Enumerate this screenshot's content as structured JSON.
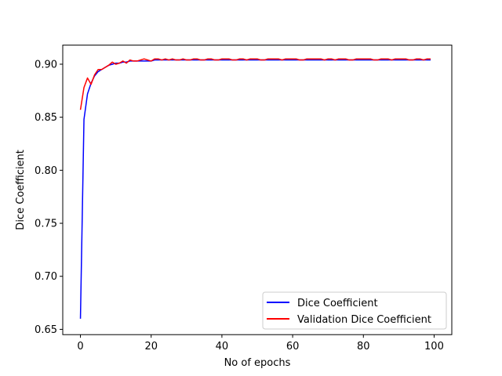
{
  "chart_data": {
    "type": "line",
    "xlabel": "No of epochs",
    "ylabel": "Dice Coefficient",
    "xlim": [
      -5,
      105
    ],
    "ylim": [
      0.645,
      0.918
    ],
    "xticks": [
      0,
      20,
      40,
      60,
      80,
      100
    ],
    "xtick_labels": [
      "0",
      "20",
      "40",
      "60",
      "80",
      "100"
    ],
    "yticks": [
      0.65,
      0.7,
      0.75,
      0.8,
      0.85,
      0.9
    ],
    "ytick_labels": [
      "0.65",
      "0.70",
      "0.75",
      "0.80",
      "0.85",
      "0.90"
    ],
    "grid": false,
    "legend_position": "lower-right",
    "series": [
      {
        "name": "Dice Coefficient",
        "color": "#0000ff",
        "x": [
          0,
          1,
          2,
          3,
          4,
          5,
          6,
          7,
          8,
          9,
          10,
          11,
          12,
          13,
          14,
          15,
          16,
          17,
          18,
          19,
          20,
          21,
          22,
          23,
          24,
          25,
          26,
          27,
          28,
          29,
          30,
          31,
          32,
          33,
          34,
          35,
          36,
          37,
          38,
          39,
          40,
          41,
          42,
          43,
          44,
          45,
          46,
          47,
          48,
          49,
          50,
          51,
          52,
          53,
          54,
          55,
          56,
          57,
          58,
          59,
          60,
          61,
          62,
          63,
          64,
          65,
          66,
          67,
          68,
          69,
          70,
          71,
          72,
          73,
          74,
          75,
          76,
          77,
          78,
          79,
          80,
          81,
          82,
          83,
          84,
          85,
          86,
          87,
          88,
          89,
          90,
          91,
          92,
          93,
          94,
          95,
          96,
          97,
          98,
          99
        ],
        "values": [
          0.66,
          0.848,
          0.872,
          0.882,
          0.889,
          0.893,
          0.895,
          0.897,
          0.899,
          0.9,
          0.901,
          0.901,
          0.902,
          0.902,
          0.903,
          0.903,
          0.903,
          0.903,
          0.903,
          0.903,
          0.903,
          0.904,
          0.904,
          0.904,
          0.904,
          0.904,
          0.904,
          0.904,
          0.904,
          0.904,
          0.904,
          0.904,
          0.904,
          0.904,
          0.904,
          0.904,
          0.904,
          0.904,
          0.904,
          0.904,
          0.904,
          0.904,
          0.904,
          0.904,
          0.904,
          0.904,
          0.904,
          0.904,
          0.904,
          0.904,
          0.904,
          0.904,
          0.904,
          0.904,
          0.904,
          0.904,
          0.904,
          0.904,
          0.904,
          0.904,
          0.904,
          0.904,
          0.904,
          0.904,
          0.904,
          0.904,
          0.904,
          0.904,
          0.904,
          0.904,
          0.904,
          0.904,
          0.904,
          0.904,
          0.904,
          0.904,
          0.904,
          0.904,
          0.904,
          0.904,
          0.904,
          0.904,
          0.904,
          0.904,
          0.904,
          0.904,
          0.904,
          0.904,
          0.904,
          0.904,
          0.904,
          0.904,
          0.904,
          0.904,
          0.904,
          0.904,
          0.904,
          0.904,
          0.904,
          0.904
        ]
      },
      {
        "name": "Validation Dice Coefficient",
        "color": "#ff0000",
        "x": [
          0,
          1,
          2,
          3,
          4,
          5,
          6,
          7,
          8,
          9,
          10,
          11,
          12,
          13,
          14,
          15,
          16,
          17,
          18,
          19,
          20,
          21,
          22,
          23,
          24,
          25,
          26,
          27,
          28,
          29,
          30,
          31,
          32,
          33,
          34,
          35,
          36,
          37,
          38,
          39,
          40,
          41,
          42,
          43,
          44,
          45,
          46,
          47,
          48,
          49,
          50,
          51,
          52,
          53,
          54,
          55,
          56,
          57,
          58,
          59,
          60,
          61,
          62,
          63,
          64,
          65,
          66,
          67,
          68,
          69,
          70,
          71,
          72,
          73,
          74,
          75,
          76,
          77,
          78,
          79,
          80,
          81,
          82,
          83,
          84,
          85,
          86,
          87,
          88,
          89,
          90,
          91,
          92,
          93,
          94,
          95,
          96,
          97,
          98,
          99
        ],
        "values": [
          0.857,
          0.878,
          0.887,
          0.881,
          0.89,
          0.895,
          0.895,
          0.897,
          0.899,
          0.902,
          0.9,
          0.901,
          0.903,
          0.901,
          0.904,
          0.903,
          0.903,
          0.904,
          0.905,
          0.904,
          0.903,
          0.905,
          0.905,
          0.904,
          0.905,
          0.904,
          0.905,
          0.904,
          0.904,
          0.905,
          0.904,
          0.904,
          0.905,
          0.905,
          0.904,
          0.904,
          0.905,
          0.905,
          0.904,
          0.904,
          0.905,
          0.905,
          0.905,
          0.904,
          0.904,
          0.905,
          0.905,
          0.904,
          0.905,
          0.905,
          0.905,
          0.904,
          0.904,
          0.905,
          0.905,
          0.905,
          0.905,
          0.904,
          0.905,
          0.905,
          0.905,
          0.905,
          0.904,
          0.904,
          0.905,
          0.905,
          0.905,
          0.905,
          0.905,
          0.904,
          0.905,
          0.905,
          0.904,
          0.905,
          0.905,
          0.905,
          0.904,
          0.904,
          0.905,
          0.905,
          0.905,
          0.905,
          0.905,
          0.904,
          0.904,
          0.905,
          0.905,
          0.905,
          0.904,
          0.905,
          0.905,
          0.905,
          0.905,
          0.904,
          0.904,
          0.905,
          0.905,
          0.904,
          0.905,
          0.905
        ]
      }
    ]
  }
}
